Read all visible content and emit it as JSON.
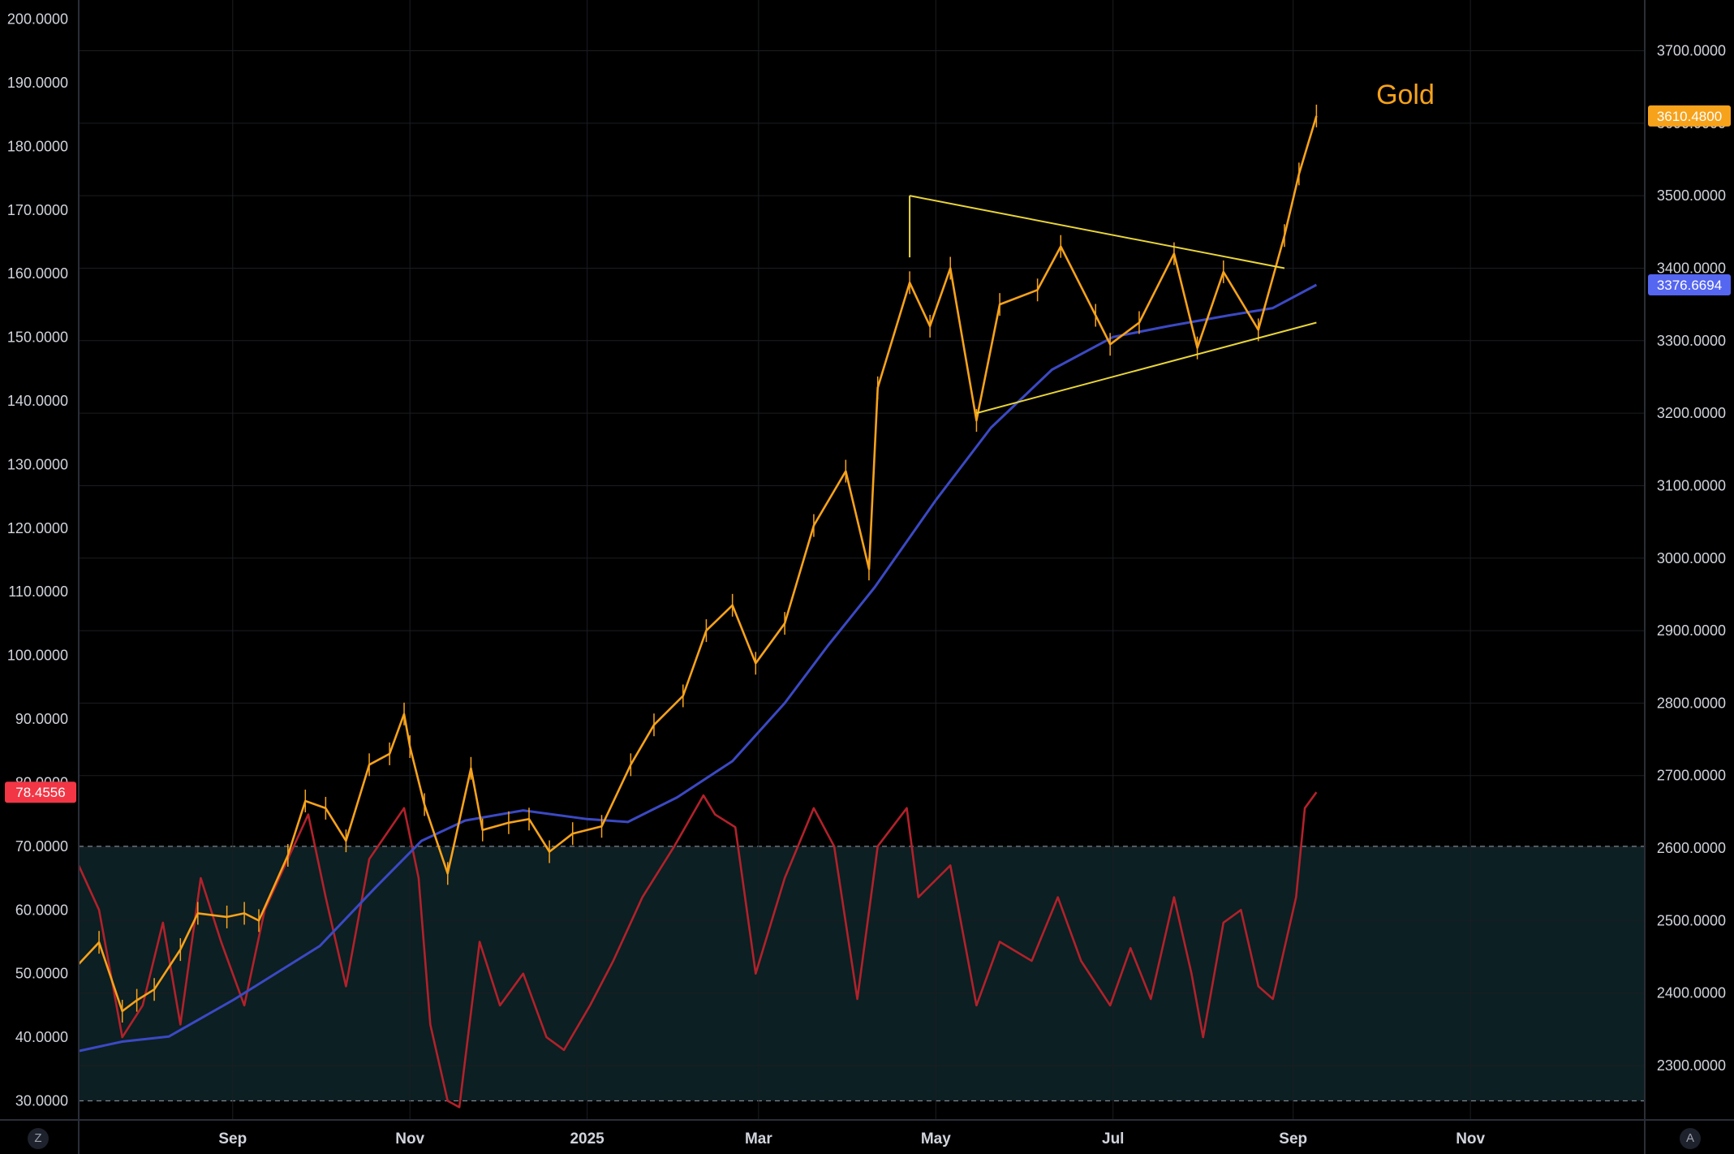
{
  "chart_data": {
    "type": "line",
    "title": "Gold",
    "x_axis": {
      "labels": [
        "Sep",
        "Nov",
        "2025",
        "Mar",
        "May",
        "Jul",
        "Sep",
        "Nov"
      ],
      "range": [
        "2024-07-10",
        "2025-12-31"
      ]
    },
    "left_axis": {
      "series": "RSI",
      "ticks": [
        "200.0000",
        "190.0000",
        "180.0000",
        "170.0000",
        "160.0000",
        "150.0000",
        "140.0000",
        "130.0000",
        "120.0000",
        "110.0000",
        "100.0000",
        "90.0000",
        "80.0000",
        "70.0000",
        "60.0000",
        "50.0000",
        "40.0000",
        "30.0000"
      ],
      "range": [
        27,
        203
      ]
    },
    "right_axis": {
      "series": "Gold",
      "ticks": [
        "3700.0000",
        "3600.0000",
        "3500.0000",
        "3400.0000",
        "3300.0000",
        "3200.0000",
        "3100.0000",
        "3000.0000",
        "2900.0000",
        "2800.0000",
        "2700.0000",
        "2600.0000",
        "2500.0000",
        "2400.0000",
        "2300.0000"
      ],
      "range": [
        2225,
        3770
      ]
    },
    "badges": {
      "rsi": "78.4556",
      "gold_last": "3610.4800",
      "ma_last": "3376.6694"
    },
    "rsi_band": {
      "upper": 70,
      "lower": 30
    },
    "colors": {
      "candles": "#f7a21b",
      "moving_average": "#3b49c4",
      "rsi": "#b2212b",
      "trendlines": "#e8d43a",
      "title": "#f7a21b",
      "rsi_badge": "#f23645",
      "gold_badge": "#f7a21b",
      "ma_badge": "#5566f0",
      "band_fill": "#0c1f22"
    },
    "series": [
      {
        "key": "gold",
        "points": [
          [
            "2024-07-10",
            2440
          ],
          [
            "2024-07-17",
            2470
          ],
          [
            "2024-07-25",
            2375
          ],
          [
            "2024-07-30",
            2390
          ],
          [
            "2024-08-05",
            2405
          ],
          [
            "2024-08-14",
            2460
          ],
          [
            "2024-08-20",
            2510
          ],
          [
            "2024-08-30",
            2505
          ],
          [
            "2024-09-05",
            2510
          ],
          [
            "2024-09-10",
            2500
          ],
          [
            "2024-09-20",
            2590
          ],
          [
            "2024-09-26",
            2665
          ],
          [
            "2024-10-03",
            2655
          ],
          [
            "2024-10-10",
            2610
          ],
          [
            "2024-10-18",
            2715
          ],
          [
            "2024-10-25",
            2730
          ],
          [
            "2024-10-30",
            2785
          ],
          [
            "2024-11-01",
            2740
          ],
          [
            "2024-11-06",
            2660
          ],
          [
            "2024-11-14",
            2565
          ],
          [
            "2024-11-22",
            2710
          ],
          [
            "2024-11-26",
            2625
          ],
          [
            "2024-12-05",
            2635
          ],
          [
            "2024-12-12",
            2640
          ],
          [
            "2024-12-19",
            2595
          ],
          [
            "2024-12-27",
            2620
          ],
          [
            "2025-01-06",
            2630
          ],
          [
            "2025-01-16",
            2715
          ],
          [
            "2025-01-24",
            2770
          ],
          [
            "2025-02-03",
            2810
          ],
          [
            "2025-02-11",
            2900
          ],
          [
            "2025-02-20",
            2935
          ],
          [
            "2025-02-28",
            2855
          ],
          [
            "2025-03-10",
            2910
          ],
          [
            "2025-03-20",
            3045
          ],
          [
            "2025-03-31",
            3120
          ],
          [
            "2025-04-08",
            2985
          ],
          [
            "2025-04-11",
            3235
          ],
          [
            "2025-04-22",
            3380
          ],
          [
            "2025-04-29",
            3320
          ],
          [
            "2025-05-06",
            3400
          ],
          [
            "2025-05-15",
            3190
          ],
          [
            "2025-05-23",
            3350
          ],
          [
            "2025-06-05",
            3370
          ],
          [
            "2025-06-13",
            3430
          ],
          [
            "2025-06-25",
            3335
          ],
          [
            "2025-06-30",
            3295
          ],
          [
            "2025-07-10",
            3325
          ],
          [
            "2025-07-22",
            3420
          ],
          [
            "2025-07-30",
            3290
          ],
          [
            "2025-08-08",
            3395
          ],
          [
            "2025-08-20",
            3315
          ],
          [
            "2025-08-29",
            3445
          ],
          [
            "2025-09-03",
            3530
          ],
          [
            "2025-09-09",
            3610
          ]
        ]
      },
      {
        "key": "moving_average",
        "points": [
          [
            "2024-07-10",
            2320
          ],
          [
            "2024-07-25",
            2333
          ],
          [
            "2024-08-10",
            2340
          ],
          [
            "2024-09-01",
            2390
          ],
          [
            "2024-10-01",
            2465
          ],
          [
            "2024-10-20",
            2545
          ],
          [
            "2024-11-05",
            2610
          ],
          [
            "2024-11-20",
            2638
          ],
          [
            "2024-12-10",
            2652
          ],
          [
            "2025-01-01",
            2640
          ],
          [
            "2025-01-15",
            2636
          ],
          [
            "2025-02-01",
            2670
          ],
          [
            "2025-02-20",
            2720
          ],
          [
            "2025-03-10",
            2800
          ],
          [
            "2025-03-25",
            2880
          ],
          [
            "2025-04-10",
            2960
          ],
          [
            "2025-05-01",
            3080
          ],
          [
            "2025-05-20",
            3180
          ],
          [
            "2025-06-10",
            3260
          ],
          [
            "2025-07-01",
            3305
          ],
          [
            "2025-07-20",
            3320
          ],
          [
            "2025-08-10",
            3335
          ],
          [
            "2025-08-25",
            3345
          ],
          [
            "2025-09-09",
            3377
          ]
        ]
      },
      {
        "key": "rsi",
        "points": [
          [
            "2024-07-10",
            67
          ],
          [
            "2024-07-17",
            60
          ],
          [
            "2024-07-25",
            40
          ],
          [
            "2024-08-01",
            45
          ],
          [
            "2024-08-08",
            58
          ],
          [
            "2024-08-14",
            42
          ],
          [
            "2024-08-21",
            65
          ],
          [
            "2024-08-28",
            55
          ],
          [
            "2024-09-05",
            45
          ],
          [
            "2024-09-12",
            60
          ],
          [
            "2024-09-20",
            68
          ],
          [
            "2024-09-27",
            75
          ],
          [
            "2024-10-03",
            62
          ],
          [
            "2024-10-10",
            48
          ],
          [
            "2024-10-18",
            68
          ],
          [
            "2024-10-30",
            76
          ],
          [
            "2024-11-04",
            65
          ],
          [
            "2024-11-08",
            42
          ],
          [
            "2024-11-14",
            30
          ],
          [
            "2024-11-18",
            29
          ],
          [
            "2024-11-25",
            55
          ],
          [
            "2024-12-02",
            45
          ],
          [
            "2024-12-10",
            50
          ],
          [
            "2024-12-18",
            40
          ],
          [
            "2024-12-24",
            38
          ],
          [
            "2025-01-02",
            45
          ],
          [
            "2025-01-10",
            52
          ],
          [
            "2025-01-20",
            62
          ],
          [
            "2025-01-31",
            70
          ],
          [
            "2025-02-10",
            78
          ],
          [
            "2025-02-14",
            75
          ],
          [
            "2025-02-21",
            73
          ],
          [
            "2025-02-28",
            50
          ],
          [
            "2025-03-10",
            65
          ],
          [
            "2025-03-20",
            76
          ],
          [
            "2025-03-27",
            70
          ],
          [
            "2025-04-04",
            46
          ],
          [
            "2025-04-11",
            70
          ],
          [
            "2025-04-21",
            76
          ],
          [
            "2025-04-25",
            62
          ],
          [
            "2025-05-06",
            67
          ],
          [
            "2025-05-15",
            45
          ],
          [
            "2025-05-23",
            55
          ],
          [
            "2025-06-03",
            52
          ],
          [
            "2025-06-12",
            62
          ],
          [
            "2025-06-20",
            52
          ],
          [
            "2025-06-30",
            45
          ],
          [
            "2025-07-07",
            54
          ],
          [
            "2025-07-14",
            46
          ],
          [
            "2025-07-22",
            62
          ],
          [
            "2025-07-28",
            50
          ],
          [
            "2025-08-01",
            40
          ],
          [
            "2025-08-08",
            58
          ],
          [
            "2025-08-14",
            60
          ],
          [
            "2025-08-20",
            48
          ],
          [
            "2025-08-25",
            46
          ],
          [
            "2025-09-02",
            62
          ],
          [
            "2025-09-05",
            76
          ],
          [
            "2025-09-09",
            78.5
          ]
        ]
      }
    ],
    "trendlines": [
      [
        [
          "2025-04-22",
          3500
        ],
        [
          "2025-08-29",
          3400
        ]
      ],
      [
        [
          "2025-05-15",
          3200
        ],
        [
          "2025-09-09",
          3325
        ]
      ],
      [
        [
          "2025-04-22",
          3500
        ],
        [
          "2025-04-22",
          3415
        ]
      ]
    ]
  },
  "ui": {
    "corner_left": "Z",
    "corner_right": "A"
  }
}
